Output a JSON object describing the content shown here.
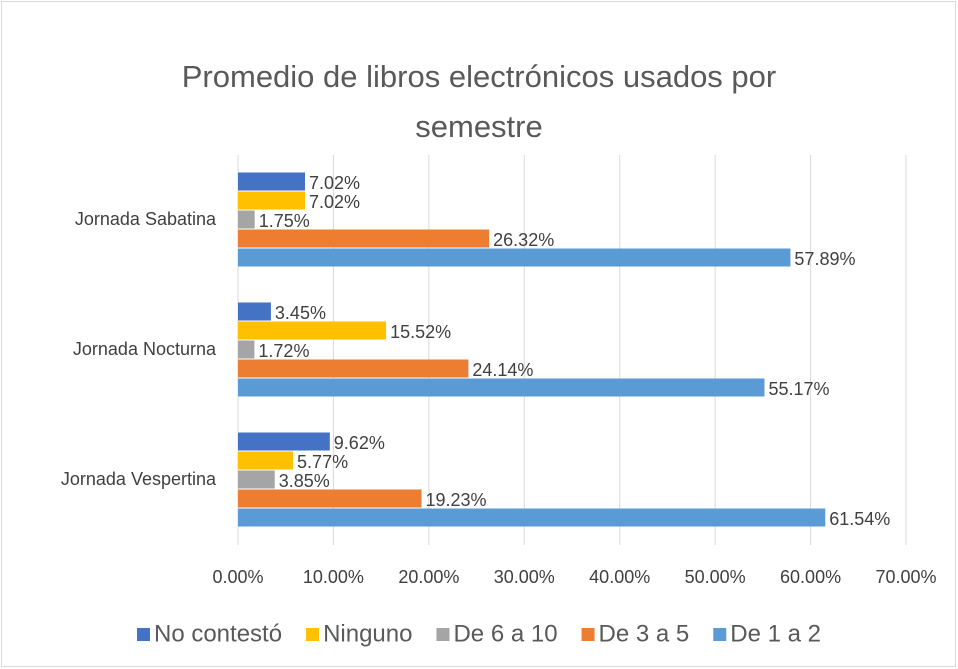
{
  "chart_data": {
    "type": "bar",
    "orientation": "horizontal",
    "title": "Promedio de libros electrónicos usados por semestre",
    "categories": [
      "Jornada Sabatina",
      "Jornada Nocturna",
      "Jornada Vespertina"
    ],
    "series": [
      {
        "name": "No contestó",
        "color": "#4472c4",
        "values": [
          7.02,
          3.45,
          9.62
        ],
        "value_labels": [
          "7.02%",
          "3.45%",
          "9.62%"
        ]
      },
      {
        "name": "Ninguno",
        "color": "#ffc000",
        "values": [
          7.02,
          15.52,
          5.77
        ],
        "value_labels": [
          "7.02%",
          "15.52%",
          "5.77%"
        ]
      },
      {
        "name": "De 6 a 10",
        "color": "#a5a5a5",
        "values": [
          1.75,
          1.72,
          3.85
        ],
        "value_labels": [
          "1.75%",
          "1.72%",
          "3.85%"
        ]
      },
      {
        "name": "De 3 a 5",
        "color": "#ed7d31",
        "values": [
          26.32,
          24.14,
          19.23
        ],
        "value_labels": [
          "26.32%",
          "24.14%",
          "19.23%"
        ]
      },
      {
        "name": "De 1 a 2",
        "color": "#5b9bd5",
        "values": [
          57.89,
          55.17,
          61.54
        ],
        "value_labels": [
          "57.89%",
          "55.17%",
          "61.54%"
        ]
      }
    ],
    "xlim": [
      0,
      70
    ],
    "xticks": [
      {
        "value": 0,
        "label": "0.00%"
      },
      {
        "value": 10,
        "label": "10.00%"
      },
      {
        "value": 20,
        "label": "20.00%"
      },
      {
        "value": 30,
        "label": "30.00%"
      },
      {
        "value": 40,
        "label": "40.00%"
      },
      {
        "value": 50,
        "label": "50.00%"
      },
      {
        "value": 60,
        "label": "60.00%"
      },
      {
        "value": 70,
        "label": "70.00%"
      }
    ],
    "grid": true,
    "legend": "bottom"
  }
}
